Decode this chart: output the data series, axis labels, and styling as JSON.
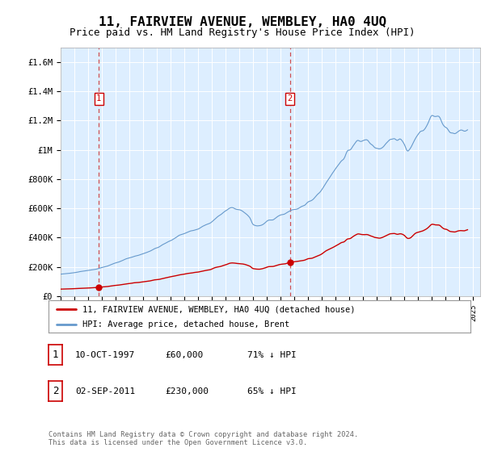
{
  "title": "11, FAIRVIEW AVENUE, WEMBLEY, HA0 4UQ",
  "subtitle": "Price paid vs. HM Land Registry's House Price Index (HPI)",
  "title_fontsize": 11.5,
  "subtitle_fontsize": 9,
  "background_color": "#ddeeff",
  "fig_bg_color": "#ffffff",
  "red_color": "#cc0000",
  "blue_color": "#6699cc",
  "ylim": [
    0,
    1700000
  ],
  "yticks": [
    0,
    200000,
    400000,
    600000,
    800000,
    1000000,
    1200000,
    1400000,
    1600000
  ],
  "ytick_labels": [
    "£0",
    "£200K",
    "£400K",
    "£600K",
    "£800K",
    "£1M",
    "£1.2M",
    "£1.4M",
    "£1.6M"
  ],
  "sale1_year": 1997.78,
  "sale1_price": 60000,
  "sale2_year": 2011.67,
  "sale2_price": 230000,
  "legend_label_red": "11, FAIRVIEW AVENUE, WEMBLEY, HA0 4UQ (detached house)",
  "legend_label_blue": "HPI: Average price, detached house, Brent",
  "table": [
    {
      "num": "1",
      "date": "10-OCT-1997",
      "price": "£60,000",
      "pct": "71% ↓ HPI"
    },
    {
      "num": "2",
      "date": "02-SEP-2011",
      "price": "£230,000",
      "pct": "65% ↓ HPI"
    }
  ],
  "footnote": "Contains HM Land Registry data © Crown copyright and database right 2024.\nThis data is licensed under the Open Government Licence v3.0.",
  "xlim_left": 1995.0,
  "xlim_right": 2025.5
}
